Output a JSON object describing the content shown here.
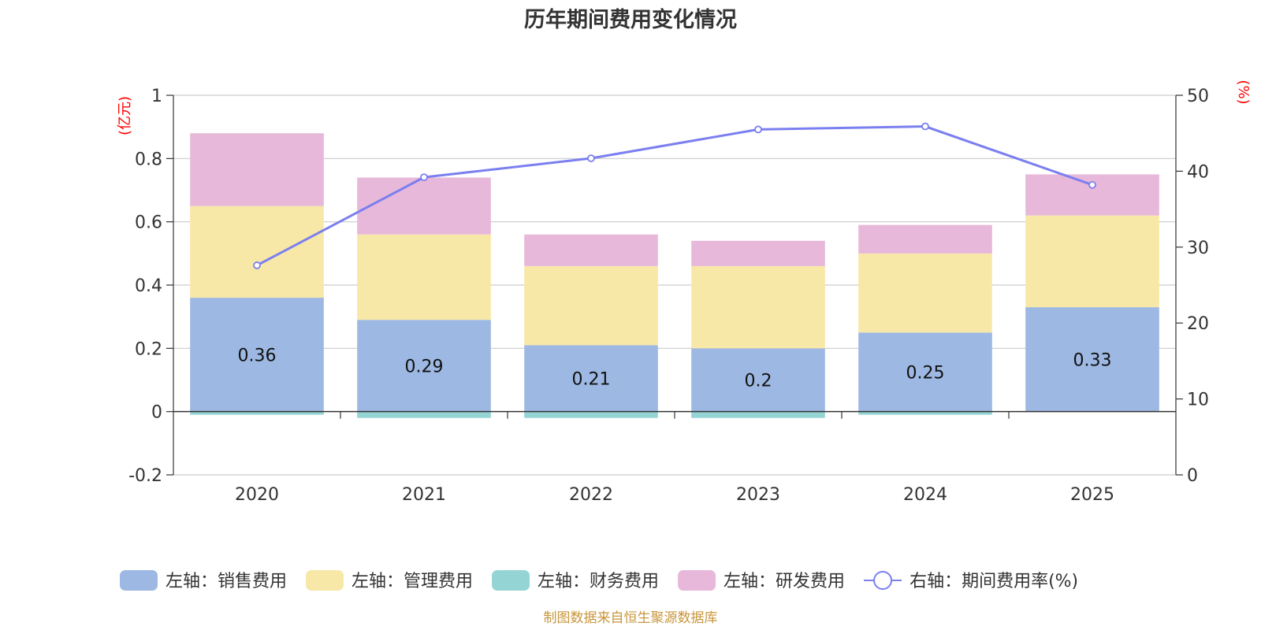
{
  "chart_data": {
    "type": "bar",
    "stacked": true,
    "title": "历年期间费用变化情况",
    "categories": [
      "2020",
      "2021",
      "2022",
      "2023",
      "2024",
      "2025"
    ],
    "left_axis": {
      "unit": "(亿元)",
      "ylim": [
        -0.2,
        1
      ],
      "ticks": [
        "-0.2",
        "0",
        "0.2",
        "0.4",
        "0.6",
        "0.8",
        "1"
      ],
      "tick_values": [
        -0.2,
        0,
        0.2,
        0.4,
        0.6,
        0.8,
        1
      ]
    },
    "right_axis": {
      "unit": "(%)",
      "ylim": [
        0,
        50
      ],
      "ticks": [
        "0",
        "10",
        "20",
        "30",
        "40",
        "50"
      ],
      "tick_values": [
        0,
        10,
        20,
        30,
        40,
        50
      ]
    },
    "series": [
      {
        "name": "左轴：销售费用",
        "color": "#9db8e2",
        "axis": "left",
        "values": [
          0.36,
          0.29,
          0.21,
          0.2,
          0.25,
          0.33
        ],
        "labels": [
          "0.36",
          "0.29",
          "0.21",
          "0.2",
          "0.25",
          "0.33"
        ]
      },
      {
        "name": "左轴：管理费用",
        "color": "#f8e8a8",
        "axis": "left",
        "values": [
          0.29,
          0.27,
          0.25,
          0.26,
          0.25,
          0.29
        ]
      },
      {
        "name": "左轴：财务费用",
        "color": "#95d4d4",
        "axis": "left",
        "values": [
          -0.01,
          -0.02,
          -0.02,
          -0.02,
          -0.01,
          0.0
        ]
      },
      {
        "name": "左轴：研发费用",
        "color": "#e7b8da",
        "axis": "left",
        "values": [
          0.23,
          0.18,
          0.1,
          0.08,
          0.09,
          0.13
        ]
      },
      {
        "name": "右轴：期间费用率(%)",
        "color": "#7b7fef",
        "axis": "right",
        "type": "line",
        "values": [
          27.6,
          39.2,
          41.7,
          45.5,
          45.9,
          38.2
        ]
      }
    ],
    "legend_position": "bottom"
  },
  "source": "制图数据来自恒生聚源数据库"
}
